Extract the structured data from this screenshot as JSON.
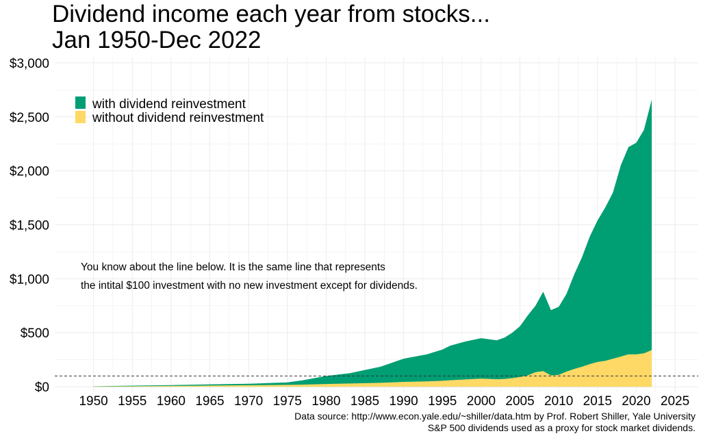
{
  "title_lines": [
    "Dividend income each year from stocks...",
    "Jan 1950-Dec 2022"
  ],
  "annotation_lines": [
    "You know about the line below. It is the same line that represents",
    "the intital $100 investment with no new investment except for dividends."
  ],
  "caption_lines": [
    "Data source: http://www.econ.yale.edu/~shiller/data.htm by Prof. Robert Shiller, Yale University",
    "S&P 500 dividends used as a proxy for stock market dividends."
  ],
  "colors": {
    "with": "#009E73",
    "without": "#FFD966",
    "grid": "#ebebeb"
  },
  "chart_data": {
    "type": "area",
    "title": "Dividend income each year from stocks... Jan 1950-Dec 2022",
    "xlabel": "",
    "ylabel": "",
    "xlim": [
      1945,
      2028
    ],
    "ylim": [
      -50,
      3050
    ],
    "x_ticks": [
      1950,
      1955,
      1960,
      1965,
      1970,
      1975,
      1980,
      1985,
      1990,
      1995,
      2000,
      2005,
      2010,
      2015,
      2020,
      2025
    ],
    "x_tick_labels": [
      "1950",
      "1955",
      "1960",
      "1965",
      "1970",
      "1975",
      "1980",
      "1985",
      "1990",
      "1995",
      "2000",
      "2005",
      "2010",
      "2015",
      "2020",
      "2025"
    ],
    "y_ticks": [
      0,
      500,
      1000,
      1500,
      2000,
      2500,
      3000
    ],
    "y_tick_labels": [
      "$0",
      "$500",
      "$1,000",
      "$1,500",
      "$2,000",
      "$2,500",
      "$3,000"
    ],
    "reference_line": {
      "y": 100,
      "style": "dashed"
    },
    "legend": {
      "position": "top-left"
    },
    "grid": true,
    "x": [
      1950,
      1955,
      1960,
      1965,
      1970,
      1975,
      1977,
      1980,
      1983,
      1987,
      1990,
      1993,
      1995,
      1996,
      1998,
      2000,
      2002,
      2003,
      2004,
      2005,
      2006,
      2007,
      2008,
      2009,
      2010,
      2011,
      2012,
      2013,
      2014,
      2015,
      2016,
      2017,
      2018,
      2019,
      2020,
      2021,
      2022
    ],
    "series": [
      {
        "name": "with dividend reinvestment",
        "values": [
          5,
          10,
          15,
          22,
          28,
          40,
          60,
          100,
          125,
          185,
          260,
          300,
          345,
          380,
          420,
          450,
          430,
          455,
          500,
          560,
          660,
          750,
          880,
          710,
          740,
          860,
          1040,
          1200,
          1390,
          1540,
          1660,
          1800,
          2050,
          2220,
          2260,
          2380,
          2660
        ]
      },
      {
        "name": "without dividend reinvestment",
        "values": [
          3,
          5,
          8,
          11,
          14,
          17,
          20,
          25,
          30,
          36,
          45,
          50,
          55,
          60,
          68,
          75,
          70,
          72,
          80,
          90,
          105,
          135,
          145,
          105,
          110,
          140,
          165,
          185,
          210,
          230,
          240,
          260,
          280,
          300,
          300,
          310,
          340
        ]
      }
    ]
  }
}
